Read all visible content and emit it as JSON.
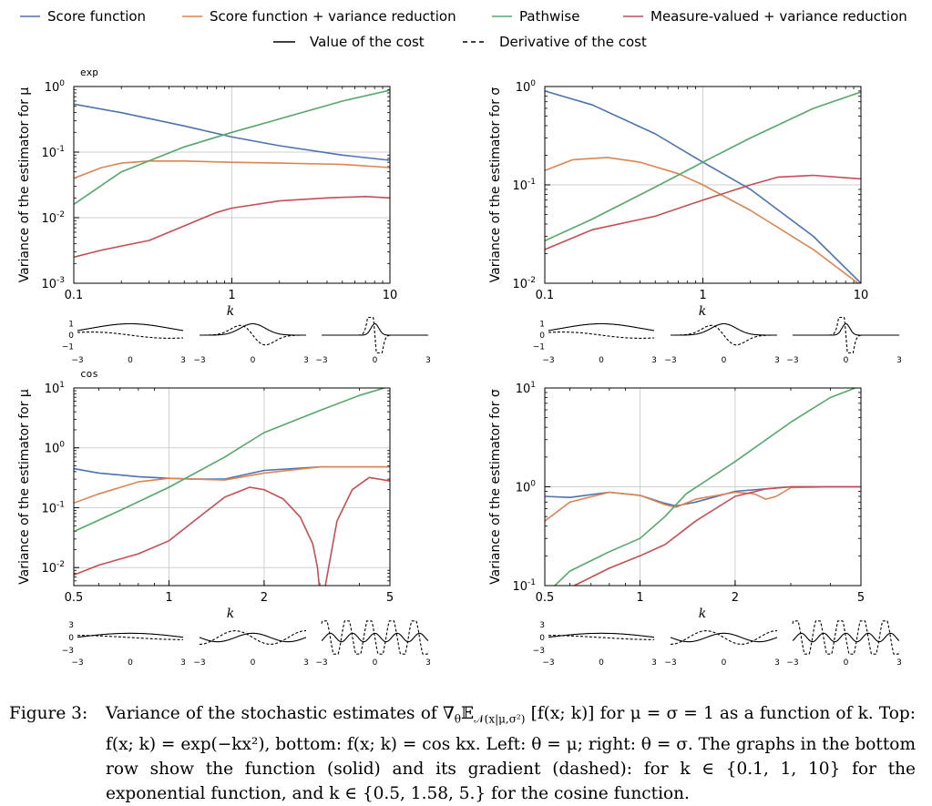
{
  "legend": {
    "entries": [
      {
        "label": "Score function",
        "color": "#4c72b0",
        "style": "solid"
      },
      {
        "label": "Score function + variance reduction",
        "color": "#dd8452",
        "style": "solid"
      },
      {
        "label": "Pathwise",
        "color": "#55a868",
        "style": "solid"
      },
      {
        "label": "Measure-valued + variance reduction",
        "color": "#c44e52",
        "style": "solid"
      }
    ],
    "line_styles": [
      {
        "label": "Value of the cost",
        "style": "solid"
      },
      {
        "label": "Derivative of the cost",
        "style": "dashed"
      }
    ]
  },
  "chart_data": [
    {
      "type": "line",
      "tag": "exp",
      "ylabel": "Variance of the estimator for μ",
      "xlabel": "k",
      "xscale": "log",
      "yscale": "log",
      "xlim": [
        0.1,
        10
      ],
      "ylim": [
        0.001,
        1
      ],
      "xticks": [
        {
          "v": 0.1,
          "label": "0.1"
        },
        {
          "v": 1,
          "label": "1"
        },
        {
          "v": 10,
          "label": "10"
        }
      ],
      "yticks": [
        {
          "v": 0.001,
          "base": "10",
          "exp": "-3"
        },
        {
          "v": 0.01,
          "base": "10",
          "exp": "-2"
        },
        {
          "v": 0.1,
          "base": "10",
          "exp": "-1"
        },
        {
          "v": 1,
          "base": "10",
          "exp": "0"
        }
      ],
      "grid": true,
      "series": [
        {
          "name": "Score function",
          "x": [
            0.1,
            0.2,
            0.5,
            1,
            2,
            5,
            10
          ],
          "y": [
            0.54,
            0.4,
            0.25,
            0.17,
            0.125,
            0.09,
            0.075
          ]
        },
        {
          "name": "Score function + variance reduction",
          "x": [
            0.1,
            0.15,
            0.2,
            0.3,
            0.5,
            1,
            2,
            5,
            10
          ],
          "y": [
            0.04,
            0.058,
            0.068,
            0.073,
            0.073,
            0.07,
            0.068,
            0.065,
            0.058
          ]
        },
        {
          "name": "Pathwise",
          "x": [
            0.1,
            0.2,
            0.5,
            1,
            2,
            5,
            10
          ],
          "y": [
            0.016,
            0.05,
            0.12,
            0.2,
            0.32,
            0.6,
            0.88
          ]
        },
        {
          "name": "Measure-valued + variance reduction",
          "x": [
            0.1,
            0.15,
            0.3,
            0.5,
            0.8,
            1,
            2,
            4,
            7,
            10
          ],
          "y": [
            0.0025,
            0.0032,
            0.0045,
            0.0075,
            0.012,
            0.014,
            0.018,
            0.02,
            0.021,
            0.02
          ]
        }
      ]
    },
    {
      "type": "line",
      "tag": "",
      "ylabel": "Variance of the estimator for σ",
      "xlabel": "k",
      "xscale": "log",
      "yscale": "log",
      "xlim": [
        0.1,
        10
      ],
      "ylim": [
        0.01,
        1
      ],
      "xticks": [
        {
          "v": 0.1,
          "label": "0.1"
        },
        {
          "v": 1,
          "label": "1"
        },
        {
          "v": 10,
          "label": "10"
        }
      ],
      "yticks": [
        {
          "v": 0.01,
          "base": "10",
          "exp": "-2"
        },
        {
          "v": 0.1,
          "base": "10",
          "exp": "-1"
        },
        {
          "v": 1,
          "base": "10",
          "exp": "0"
        }
      ],
      "grid": true,
      "series": [
        {
          "name": "Score function",
          "x": [
            0.1,
            0.2,
            0.5,
            1,
            2,
            5,
            10
          ],
          "y": [
            0.9,
            0.65,
            0.33,
            0.17,
            0.09,
            0.03,
            0.01
          ]
        },
        {
          "name": "Score function + variance reduction",
          "x": [
            0.1,
            0.15,
            0.25,
            0.4,
            0.7,
            1,
            2,
            5,
            10
          ],
          "y": [
            0.14,
            0.18,
            0.19,
            0.17,
            0.13,
            0.1,
            0.055,
            0.022,
            0.0095
          ]
        },
        {
          "name": "Pathwise",
          "x": [
            0.1,
            0.2,
            0.5,
            1,
            2,
            5,
            10
          ],
          "y": [
            0.027,
            0.045,
            0.095,
            0.17,
            0.3,
            0.6,
            0.88
          ]
        },
        {
          "name": "Measure-valued + variance reduction",
          "x": [
            0.1,
            0.2,
            0.5,
            1,
            2,
            3,
            5,
            10
          ],
          "y": [
            0.022,
            0.035,
            0.048,
            0.07,
            0.1,
            0.12,
            0.125,
            0.115
          ]
        }
      ]
    },
    {
      "type": "line",
      "tag": "cos",
      "ylabel": "Variance of the estimator for μ",
      "xlabel": "k",
      "xscale": "log",
      "yscale": "log",
      "xlim": [
        0.5,
        5
      ],
      "ylim": [
        0.005,
        10
      ],
      "xticks": [
        {
          "v": 0.5,
          "label": "0.5"
        },
        {
          "v": 1,
          "label": "1"
        },
        {
          "v": 2,
          "label": "2"
        },
        {
          "v": 5,
          "label": "5"
        }
      ],
      "yticks": [
        {
          "v": 0.01,
          "base": "10",
          "exp": "-2"
        },
        {
          "v": 0.1,
          "base": "10",
          "exp": "-1"
        },
        {
          "v": 1,
          "base": "10",
          "exp": "0"
        },
        {
          "v": 10,
          "base": "10",
          "exp": "1"
        }
      ],
      "grid": true,
      "series": [
        {
          "name": "Score function",
          "x": [
            0.5,
            0.6,
            0.8,
            1,
            1.2,
            1.5,
            2,
            3,
            5
          ],
          "y": [
            0.45,
            0.38,
            0.33,
            0.31,
            0.3,
            0.3,
            0.42,
            0.48,
            0.48
          ]
        },
        {
          "name": "Score function + variance reduction",
          "x": [
            0.5,
            0.6,
            0.8,
            1,
            1.2,
            1.5,
            2,
            3,
            5
          ],
          "y": [
            0.12,
            0.17,
            0.27,
            0.31,
            0.3,
            0.29,
            0.38,
            0.48,
            0.48
          ]
        },
        {
          "name": "Pathwise",
          "x": [
            0.5,
            0.7,
            1,
            1.5,
            2,
            3,
            4,
            4.8
          ],
          "y": [
            0.04,
            0.09,
            0.22,
            0.7,
            1.8,
            4.2,
            7.5,
            10
          ]
        },
        {
          "name": "Measure-valued + variance reduction",
          "x": [
            0.5,
            0.6,
            0.8,
            1,
            1.2,
            1.5,
            1.8,
            2,
            2.3,
            2.6,
            2.85,
            2.95,
            3.0,
            3.1,
            3.2,
            3.4,
            3.8,
            4.3,
            5
          ],
          "y": [
            0.0075,
            0.011,
            0.017,
            0.028,
            0.06,
            0.15,
            0.22,
            0.2,
            0.14,
            0.07,
            0.025,
            0.01,
            0.004,
            0.004,
            0.01,
            0.06,
            0.2,
            0.32,
            0.28
          ]
        }
      ]
    },
    {
      "type": "line",
      "tag": "",
      "ylabel": "Variance of the estimator for σ",
      "xlabel": "k",
      "xscale": "log",
      "yscale": "log",
      "xlim": [
        0.5,
        5
      ],
      "ylim": [
        0.1,
        10
      ],
      "xticks": [
        {
          "v": 0.5,
          "label": "0.5"
        },
        {
          "v": 1,
          "label": "1"
        },
        {
          "v": 2,
          "label": "2"
        },
        {
          "v": 5,
          "label": "5"
        }
      ],
      "yticks": [
        {
          "v": 0.1,
          "base": "10",
          "exp": "-1"
        },
        {
          "v": 1,
          "base": "10",
          "exp": "0"
        },
        {
          "v": 10,
          "base": "10",
          "exp": "1"
        }
      ],
      "grid": true,
      "series": [
        {
          "name": "Score function",
          "x": [
            0.5,
            0.6,
            0.8,
            1,
            1.2,
            1.3,
            1.5,
            2,
            3,
            5
          ],
          "y": [
            0.8,
            0.78,
            0.88,
            0.82,
            0.68,
            0.64,
            0.7,
            0.9,
            1.0,
            1.0
          ]
        },
        {
          "name": "Score function + variance reduction",
          "x": [
            0.5,
            0.6,
            0.8,
            1,
            1.2,
            1.3,
            1.5,
            2,
            2.3,
            2.5,
            2.7,
            3,
            4,
            5
          ],
          "y": [
            0.45,
            0.7,
            0.88,
            0.82,
            0.66,
            0.62,
            0.75,
            0.88,
            0.85,
            0.75,
            0.8,
            0.98,
            1.0,
            1.0
          ]
        },
        {
          "name": "Pathwise",
          "x": [
            0.5,
            0.6,
            0.8,
            1,
            1.2,
            1.4,
            2,
            3,
            4,
            4.8
          ],
          "y": [
            0.08,
            0.14,
            0.22,
            0.3,
            0.5,
            0.85,
            1.8,
            4.5,
            8,
            10
          ]
        },
        {
          "name": "Measure-valued + variance reduction",
          "x": [
            0.6,
            0.8,
            1,
            1.2,
            1.5,
            2,
            2.5,
            3,
            4,
            5
          ],
          "y": [
            0.095,
            0.15,
            0.2,
            0.26,
            0.45,
            0.8,
            0.95,
            1.0,
            1.0,
            1.0
          ]
        }
      ]
    }
  ],
  "insets": {
    "exp_ks": [
      0.1,
      1,
      10
    ],
    "cos_ks": [
      0.5,
      1.58,
      5.0
    ],
    "x_ticks": [
      "−3",
      "0",
      "3"
    ],
    "exp_y_ticks": [
      "1",
      "0",
      "−1"
    ],
    "cos_y_ticks": [
      "3",
      "0",
      "−3"
    ]
  },
  "caption": {
    "label": "Figure 3:",
    "part1": "Variance of the stochastic estimates of ∇",
    "part2": "θ",
    "part3": "𝔼",
    "part4": "𝒩(x|μ,σ²)",
    "part5": " [f(x; k)] for μ = σ = 1 as a function of k.  Top:  f(x; k) = exp(−kx²), bottom:  f(x; k) = cos kx.  Left:  θ = μ; right:  θ = σ.  The graphs in the bottom row show the function (solid) and its gradient (dashed): for k ∈ {0.1, 1, 10} for the exponential function, and k ∈ {0.5, 1.58, 5.} for the cosine function."
  }
}
